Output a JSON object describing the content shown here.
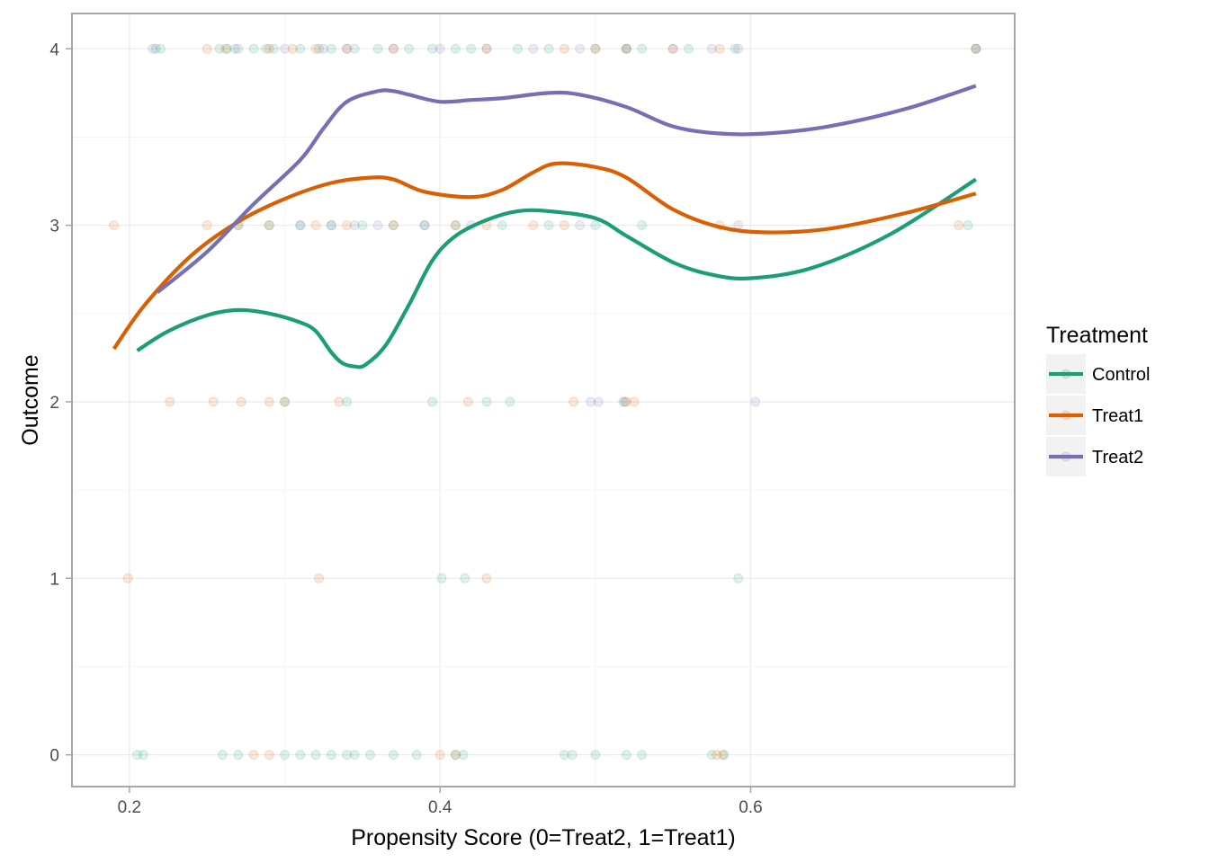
{
  "chart_data": {
    "type": "scatter",
    "xlabel": "Propensity Score (0=Treat2, 1=Treat1)",
    "ylabel": "Outcome",
    "xlim": [
      0.163,
      0.77
    ],
    "ylim": [
      -0.18,
      4.2
    ],
    "x_ticks": [
      0.2,
      0.4,
      0.6
    ],
    "x_tick_labels": [
      "0.2",
      "0.4",
      "0.6"
    ],
    "y_ticks": [
      0,
      1,
      2,
      3,
      4
    ],
    "y_tick_labels": [
      "0",
      "1",
      "2",
      "3",
      "4"
    ],
    "grid": true,
    "legend": {
      "title": "Treatment",
      "placement": "right"
    },
    "series": [
      {
        "name": "Control",
        "color": "#1b9e77",
        "points": [
          [
            0.217,
            4
          ],
          [
            0.22,
            4
          ],
          [
            0.258,
            4
          ],
          [
            0.263,
            4
          ],
          [
            0.268,
            4
          ],
          [
            0.28,
            4
          ],
          [
            0.288,
            4
          ],
          [
            0.293,
            4
          ],
          [
            0.31,
            4
          ],
          [
            0.322,
            4
          ],
          [
            0.33,
            4
          ],
          [
            0.345,
            4
          ],
          [
            0.36,
            4
          ],
          [
            0.38,
            4
          ],
          [
            0.395,
            4
          ],
          [
            0.41,
            4
          ],
          [
            0.42,
            4
          ],
          [
            0.45,
            4
          ],
          [
            0.47,
            4
          ],
          [
            0.5,
            4
          ],
          [
            0.52,
            4
          ],
          [
            0.53,
            4
          ],
          [
            0.56,
            4
          ],
          [
            0.59,
            4
          ],
          [
            0.745,
            4
          ],
          [
            0.27,
            3
          ],
          [
            0.29,
            3
          ],
          [
            0.31,
            3
          ],
          [
            0.33,
            3
          ],
          [
            0.35,
            3
          ],
          [
            0.37,
            3
          ],
          [
            0.39,
            3
          ],
          [
            0.41,
            3
          ],
          [
            0.44,
            3
          ],
          [
            0.47,
            3
          ],
          [
            0.5,
            3
          ],
          [
            0.53,
            3
          ],
          [
            0.74,
            3
          ],
          [
            0.3,
            2
          ],
          [
            0.34,
            2
          ],
          [
            0.395,
            2
          ],
          [
            0.43,
            2
          ],
          [
            0.445,
            2
          ],
          [
            0.518,
            2
          ],
          [
            0.401,
            1
          ],
          [
            0.416,
            1
          ],
          [
            0.592,
            1
          ],
          [
            0.205,
            0
          ],
          [
            0.209,
            0
          ],
          [
            0.26,
            0
          ],
          [
            0.27,
            0
          ],
          [
            0.3,
            0
          ],
          [
            0.31,
            0
          ],
          [
            0.32,
            0
          ],
          [
            0.33,
            0
          ],
          [
            0.34,
            0
          ],
          [
            0.345,
            0
          ],
          [
            0.355,
            0
          ],
          [
            0.37,
            0
          ],
          [
            0.385,
            0
          ],
          [
            0.41,
            0
          ],
          [
            0.415,
            0
          ],
          [
            0.48,
            0
          ],
          [
            0.485,
            0
          ],
          [
            0.5,
            0
          ],
          [
            0.52,
            0
          ],
          [
            0.53,
            0
          ],
          [
            0.575,
            0
          ],
          [
            0.583,
            0
          ]
        ],
        "curve": [
          [
            0.205,
            2.29
          ],
          [
            0.225,
            2.4
          ],
          [
            0.25,
            2.49
          ],
          [
            0.27,
            2.52
          ],
          [
            0.29,
            2.5
          ],
          [
            0.31,
            2.45
          ],
          [
            0.32,
            2.4
          ],
          [
            0.33,
            2.28
          ],
          [
            0.337,
            2.22
          ],
          [
            0.345,
            2.2
          ],
          [
            0.352,
            2.21
          ],
          [
            0.365,
            2.32
          ],
          [
            0.38,
            2.55
          ],
          [
            0.395,
            2.8
          ],
          [
            0.41,
            2.94
          ],
          [
            0.43,
            3.03
          ],
          [
            0.45,
            3.08
          ],
          [
            0.47,
            3.08
          ],
          [
            0.5,
            3.04
          ],
          [
            0.52,
            2.94
          ],
          [
            0.55,
            2.79
          ],
          [
            0.575,
            2.72
          ],
          [
            0.6,
            2.7
          ],
          [
            0.64,
            2.76
          ],
          [
            0.69,
            2.95
          ],
          [
            0.745,
            3.26
          ]
        ]
      },
      {
        "name": "Treat1",
        "color": "#d95f02",
        "points": [
          [
            0.25,
            4
          ],
          [
            0.262,
            4
          ],
          [
            0.29,
            4
          ],
          [
            0.305,
            4
          ],
          [
            0.32,
            4
          ],
          [
            0.34,
            4
          ],
          [
            0.37,
            4
          ],
          [
            0.43,
            4
          ],
          [
            0.48,
            4
          ],
          [
            0.5,
            4
          ],
          [
            0.52,
            4
          ],
          [
            0.55,
            4
          ],
          [
            0.58,
            4
          ],
          [
            0.745,
            4
          ],
          [
            0.19,
            3
          ],
          [
            0.25,
            3
          ],
          [
            0.27,
            3
          ],
          [
            0.29,
            3
          ],
          [
            0.32,
            3
          ],
          [
            0.34,
            3
          ],
          [
            0.37,
            3
          ],
          [
            0.41,
            3
          ],
          [
            0.43,
            3
          ],
          [
            0.46,
            3
          ],
          [
            0.48,
            3
          ],
          [
            0.58,
            3
          ],
          [
            0.734,
            3
          ],
          [
            0.226,
            2
          ],
          [
            0.254,
            2
          ],
          [
            0.272,
            2
          ],
          [
            0.29,
            2
          ],
          [
            0.3,
            2
          ],
          [
            0.335,
            2
          ],
          [
            0.418,
            2
          ],
          [
            0.486,
            2
          ],
          [
            0.52,
            2
          ],
          [
            0.525,
            2
          ],
          [
            0.199,
            1
          ],
          [
            0.322,
            1
          ],
          [
            0.43,
            1
          ],
          [
            0.28,
            0
          ],
          [
            0.29,
            0
          ],
          [
            0.4,
            0
          ],
          [
            0.41,
            0
          ],
          [
            0.578,
            0
          ],
          [
            0.582,
            0
          ]
        ],
        "curve": [
          [
            0.19,
            2.3
          ],
          [
            0.21,
            2.55
          ],
          [
            0.24,
            2.83
          ],
          [
            0.27,
            3.02
          ],
          [
            0.3,
            3.15
          ],
          [
            0.33,
            3.24
          ],
          [
            0.355,
            3.27
          ],
          [
            0.37,
            3.26
          ],
          [
            0.39,
            3.19
          ],
          [
            0.42,
            3.16
          ],
          [
            0.44,
            3.2
          ],
          [
            0.46,
            3.3
          ],
          [
            0.475,
            3.35
          ],
          [
            0.5,
            3.33
          ],
          [
            0.52,
            3.27
          ],
          [
            0.55,
            3.09
          ],
          [
            0.58,
            2.99
          ],
          [
            0.61,
            2.96
          ],
          [
            0.65,
            2.98
          ],
          [
            0.7,
            3.07
          ],
          [
            0.745,
            3.18
          ]
        ]
      },
      {
        "name": "Treat2",
        "color": "#7570b3",
        "points": [
          [
            0.215,
            4
          ],
          [
            0.27,
            4
          ],
          [
            0.3,
            4
          ],
          [
            0.325,
            4
          ],
          [
            0.34,
            4
          ],
          [
            0.37,
            4
          ],
          [
            0.4,
            4
          ],
          [
            0.43,
            4
          ],
          [
            0.46,
            4
          ],
          [
            0.49,
            4
          ],
          [
            0.52,
            4
          ],
          [
            0.55,
            4
          ],
          [
            0.575,
            4
          ],
          [
            0.592,
            4
          ],
          [
            0.745,
            4
          ],
          [
            0.31,
            3
          ],
          [
            0.33,
            3
          ],
          [
            0.345,
            3
          ],
          [
            0.36,
            3
          ],
          [
            0.39,
            3
          ],
          [
            0.42,
            3
          ],
          [
            0.49,
            3
          ],
          [
            0.592,
            3
          ],
          [
            0.497,
            2
          ],
          [
            0.502,
            2
          ],
          [
            0.519,
            2
          ],
          [
            0.603,
            2
          ]
        ],
        "curve": [
          [
            0.218,
            2.62
          ],
          [
            0.25,
            2.85
          ],
          [
            0.28,
            3.12
          ],
          [
            0.31,
            3.37
          ],
          [
            0.325,
            3.55
          ],
          [
            0.34,
            3.7
          ],
          [
            0.36,
            3.76
          ],
          [
            0.37,
            3.76
          ],
          [
            0.38,
            3.74
          ],
          [
            0.4,
            3.7
          ],
          [
            0.42,
            3.71
          ],
          [
            0.44,
            3.72
          ],
          [
            0.47,
            3.75
          ],
          [
            0.49,
            3.74
          ],
          [
            0.52,
            3.67
          ],
          [
            0.55,
            3.56
          ],
          [
            0.58,
            3.52
          ],
          [
            0.61,
            3.52
          ],
          [
            0.65,
            3.56
          ],
          [
            0.7,
            3.66
          ],
          [
            0.745,
            3.79
          ]
        ]
      }
    ]
  }
}
